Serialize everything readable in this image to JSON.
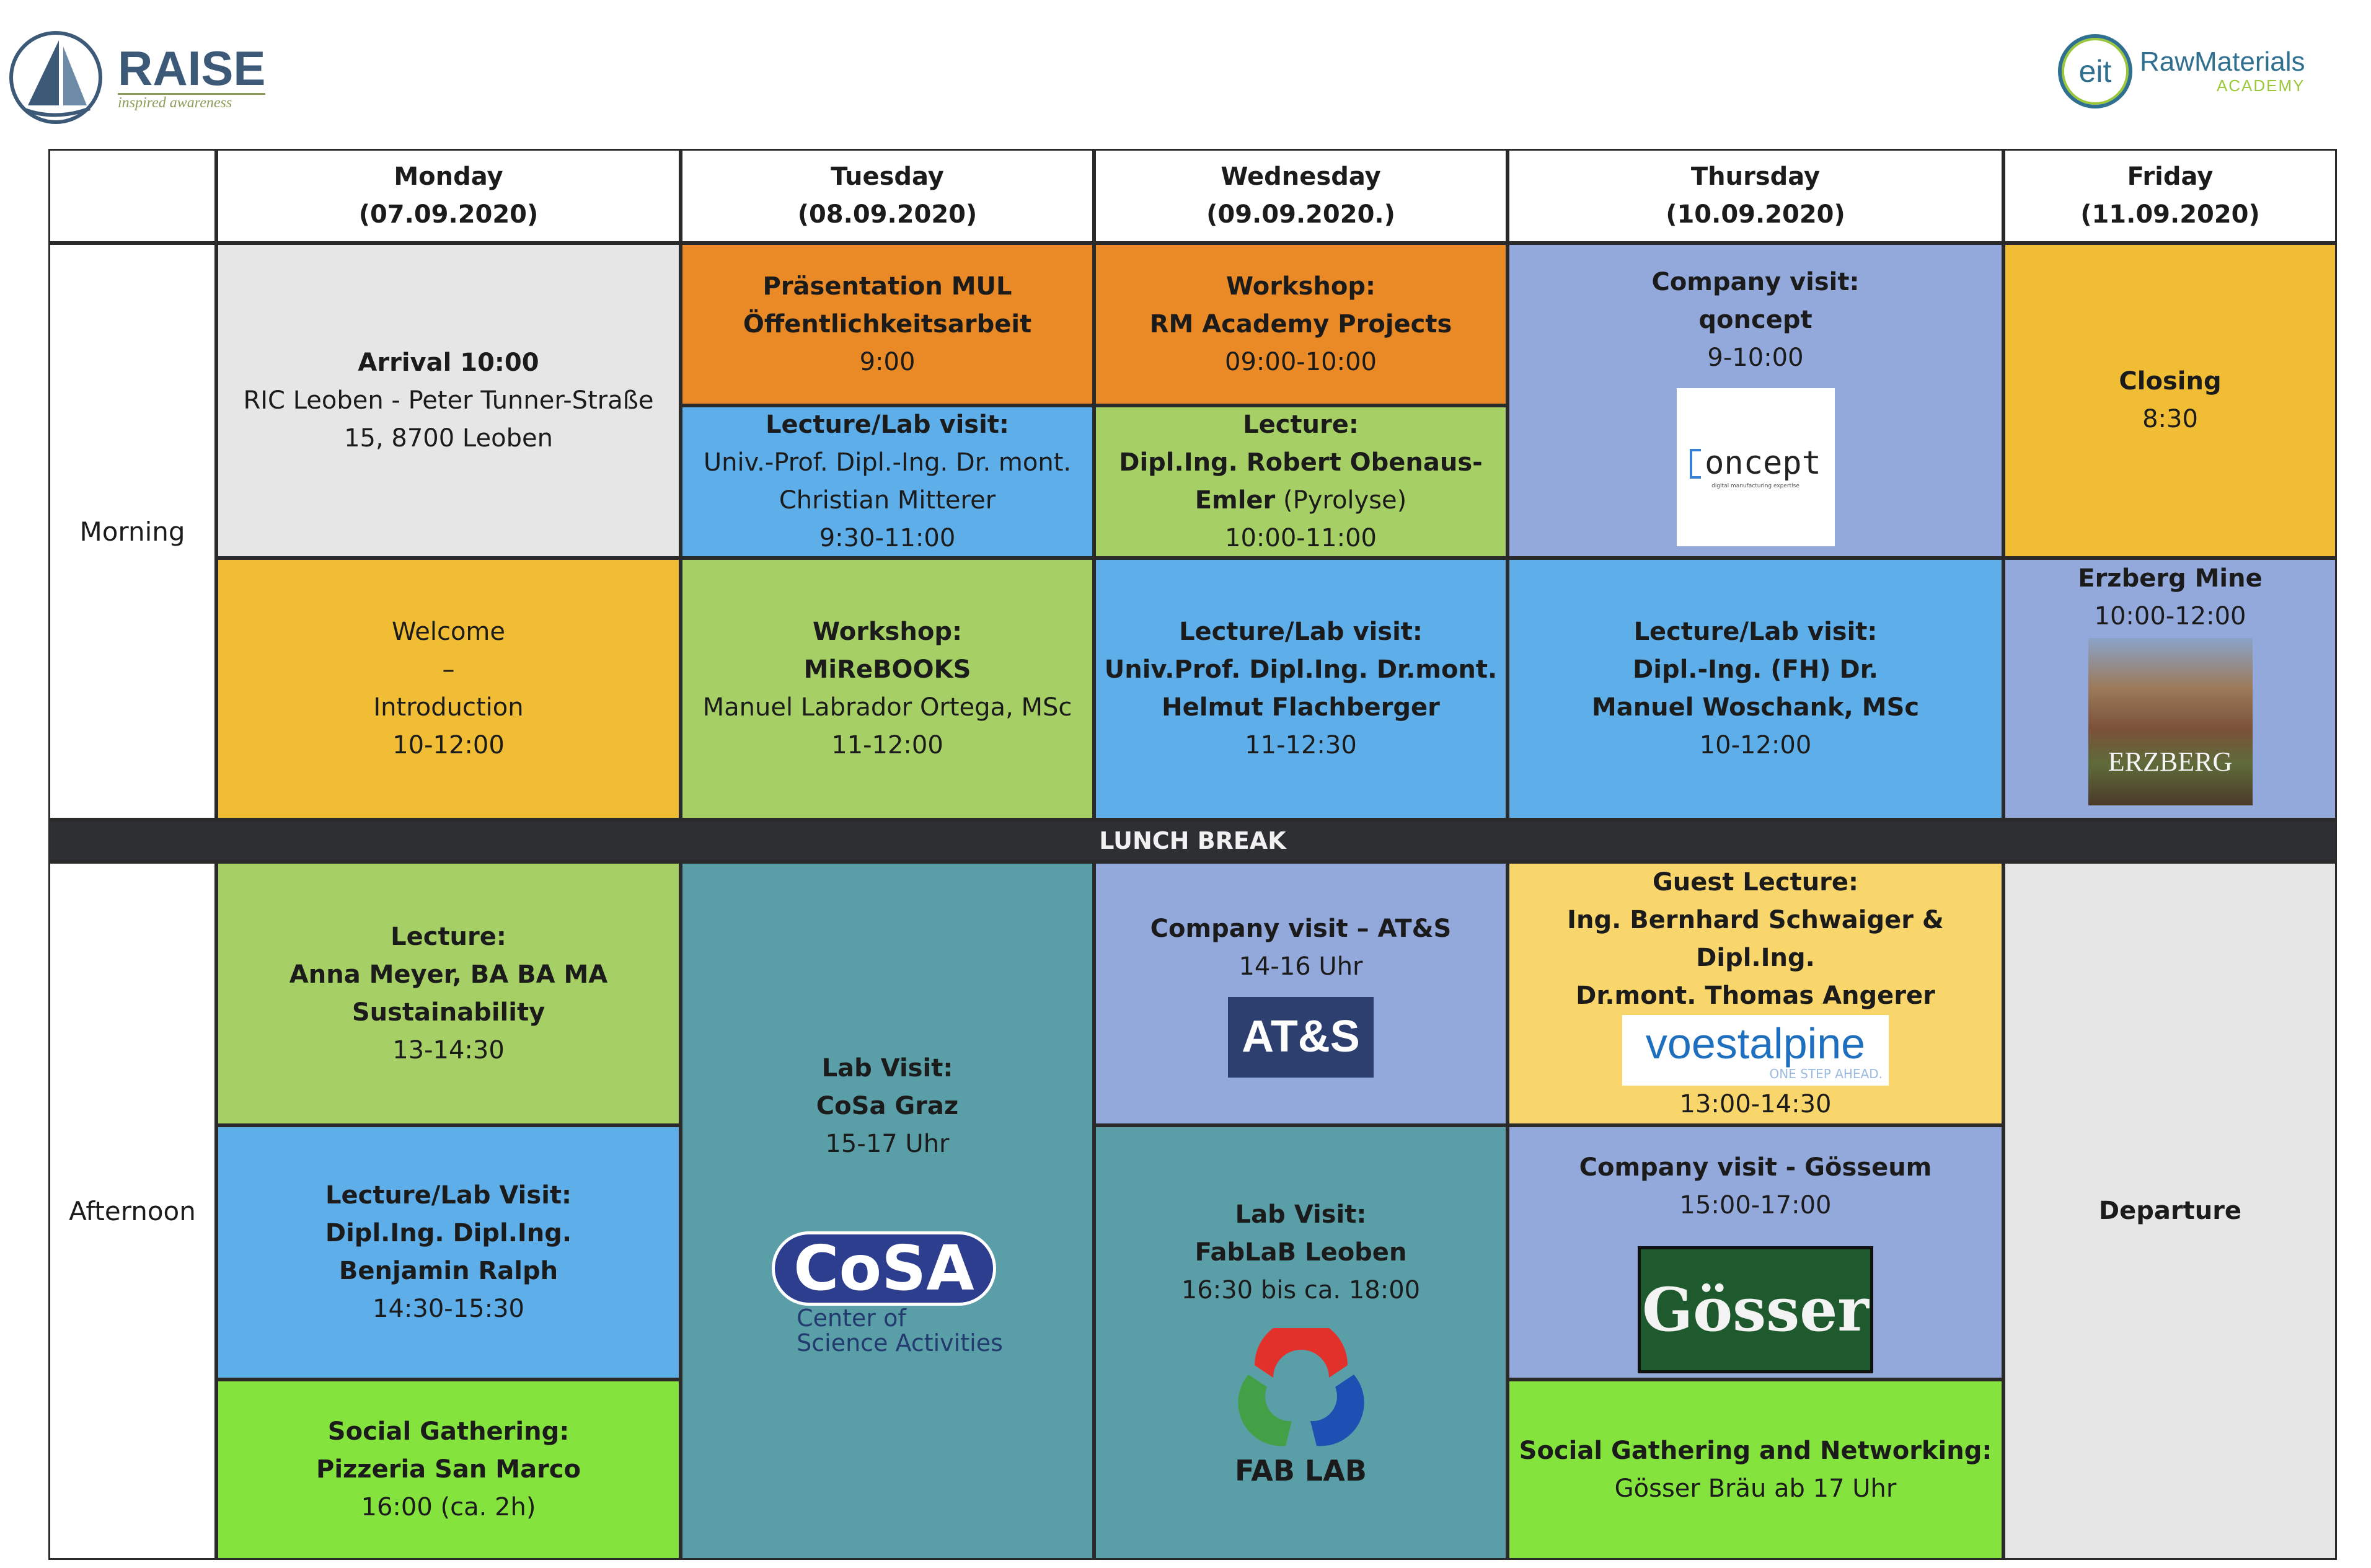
{
  "header": {
    "raise_logo": {
      "title": "RAISE",
      "tagline": "inspired awareness"
    },
    "eit_logo": {
      "badge": "eit",
      "name": "RawMaterials",
      "sub": "ACADEMY"
    }
  },
  "days": [
    {
      "name": "Monday",
      "date": "(07.09.2020)"
    },
    {
      "name": "Tuesday",
      "date": "(08.09.2020)"
    },
    {
      "name": "Wednesday",
      "date": "(09.09.2020.)"
    },
    {
      "name": "Thursday",
      "date": "(10.09.2020)"
    },
    {
      "name": "Friday",
      "date": "(11.09.2020)"
    }
  ],
  "rows": {
    "morning": "Morning",
    "afternoon": "Afternoon",
    "lunch": "LUNCH BREAK"
  },
  "events": {
    "mon_arrival": {
      "title": "Arrival 10:00",
      "l1": "RIC Leoben - Peter Tunner-Straße",
      "l2": "15, 8700 Leoben"
    },
    "mon_welcome": {
      "l1": "Welcome",
      "l2": "–",
      "l3": "Introduction",
      "time": "10-12:00"
    },
    "tue_praesentation": {
      "l1": "Präsentation MUL",
      "l2": "Öffentlichkeitsarbeit",
      "time": "9:00"
    },
    "tue_lecture": {
      "title": "Lecture/Lab visit:",
      "l1": "Univ.-Prof. Dipl.-Ing. Dr. mont.",
      "l2": "Christian Mitterer",
      "time": "9:30-11:00"
    },
    "tue_workshop": {
      "title": "Workshop:",
      "l1": "MiReBOOKS",
      "l2": "Manuel Labrador Ortega, MSc",
      "time": "11-12:00"
    },
    "wed_workshop": {
      "title": "Workshop:",
      "l1": "RM Academy Projects",
      "time": "09:00-10:00"
    },
    "wed_lecture": {
      "title": "Lecture:",
      "l1": "Dipl.Ing. Robert Obenaus-",
      "l2a": "Emler",
      "l2b": " (Pyrolyse)",
      "time": "10:00-11:00"
    },
    "wed_lab": {
      "title": "Lecture/Lab visit:",
      "l1": "Univ.Prof. Dipl.Ing. Dr.mont.",
      "l2": "Helmut Flachberger",
      "time": "11-12:30"
    },
    "thu_company": {
      "title": "Company visit:",
      "l1": "qoncept",
      "time": "9-10:00",
      "logo": "oncept",
      "logo_sub": "digital manufacturing expertise"
    },
    "thu_lab": {
      "title": "Lecture/Lab visit:",
      "l1": "Dipl.-Ing. (FH) Dr.",
      "l2": "Manuel Woschank, MSc",
      "time": "10-12:00"
    },
    "fri_closing": {
      "title": "Closing",
      "time": "8:30"
    },
    "fri_erzberg": {
      "title": "Erzberg Mine",
      "time": "10:00-12:00",
      "img_text": "ERZBERG"
    },
    "mon_lecture_pm": {
      "title": "Lecture:",
      "l1": "Anna Meyer, BA BA MA",
      "l2": "Sustainability",
      "time": "13-14:30"
    },
    "mon_lab_pm": {
      "title": "Lecture/Lab Visit:",
      "l1": "Dipl.Ing. Dipl.Ing.",
      "l2": "Benjamin Ralph",
      "time": "14:30-15:30"
    },
    "mon_social": {
      "title": "Social Gathering:",
      "l1": "Pizzeria San Marco",
      "time": "16:00 (ca. 2h)"
    },
    "tue_cosa": {
      "title": "Lab Visit:",
      "l1": "CoSa Graz",
      "time": "15-17 Uhr",
      "logo": "CoSA",
      "logo_l1": "Center of",
      "logo_l2": "Science Activities"
    },
    "wed_ats": {
      "title": "Company visit – AT&S",
      "time": "14-16 Uhr",
      "logo": "AT&S"
    },
    "wed_fablab": {
      "title": "Lab Visit:",
      "l1": "FabLaB Leoben",
      "time": "16:30 bis ca. 18:00",
      "logo": "FAB LAB"
    },
    "thu_guest": {
      "title": "Guest Lecture:",
      "l1": "Ing. Bernhard Schwaiger & Dipl.Ing.",
      "l2": "Dr.mont. Thomas Angerer",
      "logo": "voestalpine",
      "logo_sub": "ONE STEP AHEAD.",
      "time": "13:00-14:30"
    },
    "thu_goesseum": {
      "title": "Company visit - Gösseum",
      "time": "15:00-17:00",
      "logo": "Gösser"
    },
    "thu_social": {
      "title": "Social Gathering and Networking:",
      "l1": "Gösser Bräu ab 17 Uhr"
    },
    "fri_departure": {
      "title": "Departure"
    }
  },
  "colors": {
    "grey": "#e6e6e6",
    "orange": "#ea8a27",
    "blue": "#5eaeea",
    "green": "#a6d065",
    "yellow": "#f0bd34",
    "periwinkle": "#93a9dc",
    "teal": "#5a9ea8",
    "lightyellow": "#f9d66b",
    "brightgreen": "#84e33d",
    "lunch": "#2e2f33"
  }
}
